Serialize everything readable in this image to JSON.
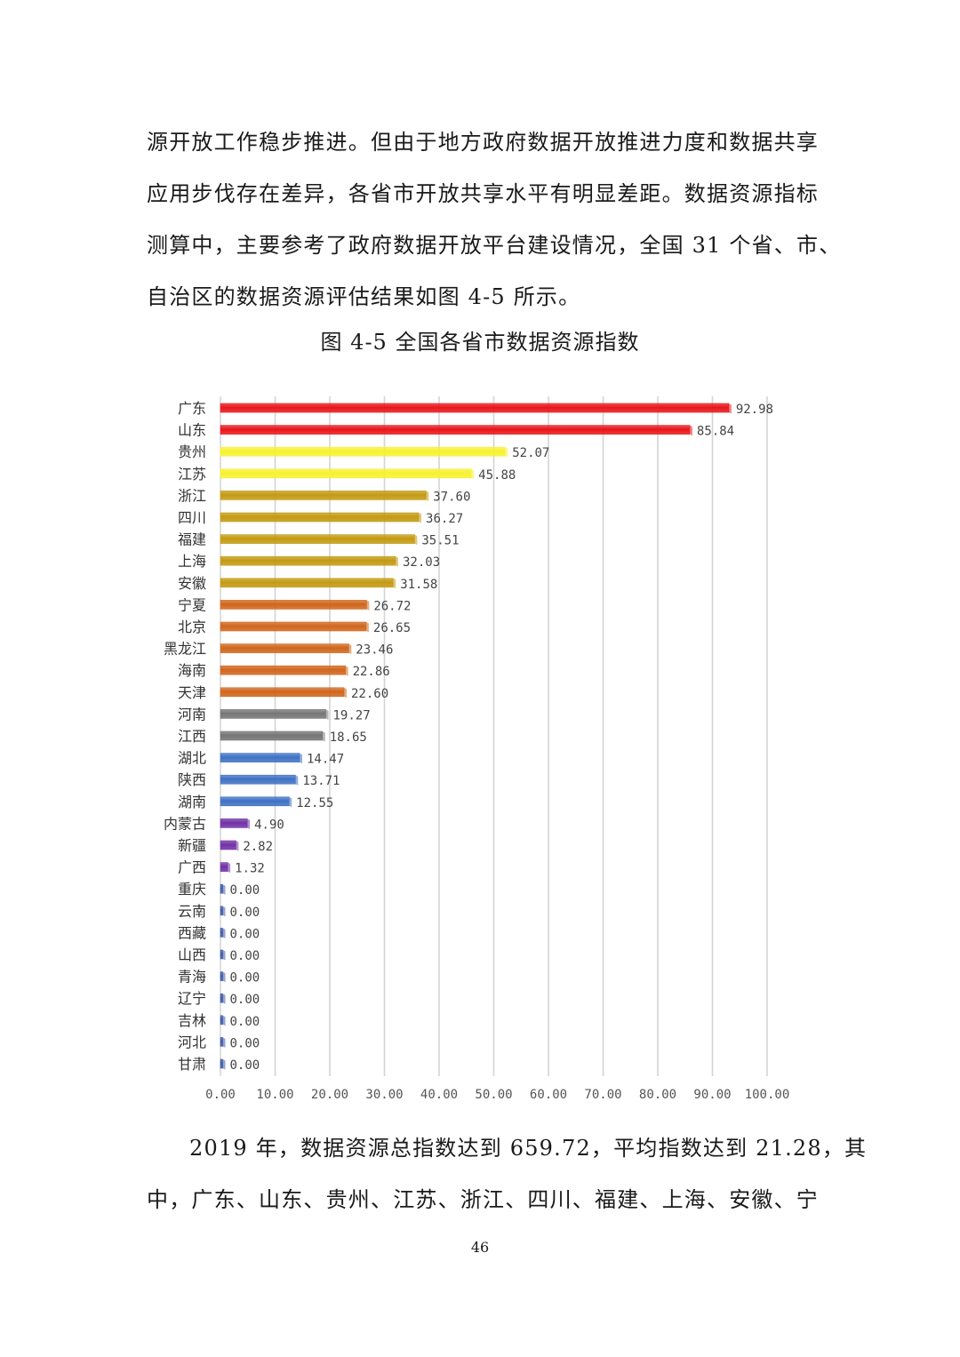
{
  "document": {
    "intro_lines": [
      "源开放工作稳步推进。但由于地方政府数据开放推进力度和数据共享",
      "应用步伐存在差异，各省市开放共享水平有明显差距。数据资源指标",
      "测算中，主要参考了政府数据开放平台建设情况，全国 31 个省、市、",
      "自治区的数据资源评估结果如图 4-5 所示。"
    ],
    "figure_caption": "图 4-5 全国各省市数据资源指数",
    "summary_lines": [
      "2019 年，数据资源总指数达到 659.72，平均指数达到 21.28，其",
      "中，广东、山东、贵州、江苏、浙江、四川、福建、上海、安徽、宁"
    ],
    "page_number": "46"
  },
  "chart_data": {
    "type": "bar",
    "orientation": "horizontal",
    "title": "",
    "xlabel": "",
    "ylabel": "",
    "xlim": [
      0,
      100
    ],
    "x_ticks": [
      "0.00",
      "10.00",
      "20.00",
      "30.00",
      "40.00",
      "50.00",
      "60.00",
      "70.00",
      "80.00",
      "90.00",
      "100.00"
    ],
    "grid": "vertical",
    "legend": "none",
    "categories": [
      "广东",
      "山东",
      "贵州",
      "江苏",
      "浙江",
      "四川",
      "福建",
      "上海",
      "安徽",
      "宁夏",
      "北京",
      "黑龙江",
      "海南",
      "天津",
      "河南",
      "江西",
      "湖北",
      "陕西",
      "湖南",
      "内蒙古",
      "新疆",
      "广西",
      "重庆",
      "云南",
      "西藏",
      "山西",
      "青海",
      "辽宁",
      "吉林",
      "河北",
      "甘肃"
    ],
    "values": [
      92.98,
      85.84,
      52.07,
      45.88,
      37.6,
      36.27,
      35.51,
      32.03,
      31.58,
      26.72,
      26.65,
      23.46,
      22.86,
      22.6,
      19.27,
      18.65,
      14.47,
      13.71,
      12.55,
      4.9,
      2.82,
      1.32,
      0.0,
      0.0,
      0.0,
      0.0,
      0.0,
      0.0,
      0.0,
      0.0,
      0.0
    ],
    "data_labels": [
      "92.98",
      "85.84",
      "52.07",
      "45.88",
      "37.60",
      "36.27",
      "35.51",
      "32.03",
      "31.58",
      "26.72",
      "26.65",
      "23.46",
      "22.86",
      "22.60",
      "19.27",
      "18.65",
      "14.47",
      "13.71",
      "12.55",
      "4.90",
      "2.82",
      "1.32",
      "0.00",
      "0.00",
      "0.00",
      "0.00",
      "0.00",
      "0.00",
      "0.00",
      "0.00",
      "0.00"
    ],
    "bar_colors": [
      "#e8161b",
      "#e8161b",
      "#f6f230",
      "#f6f230",
      "#c49a12",
      "#c49a12",
      "#c49a12",
      "#c49a12",
      "#c49a12",
      "#d0661c",
      "#d0661c",
      "#d0661c",
      "#d0661c",
      "#d0661c",
      "#757575",
      "#757575",
      "#3f71c4",
      "#3f71c4",
      "#3f71c4",
      "#7131a6",
      "#7131a6",
      "#7131a6",
      "#3f5aa8",
      "#3f5aa8",
      "#3f5aa8",
      "#3f5aa8",
      "#3f5aa8",
      "#3f5aa8",
      "#3f5aa8",
      "#3f5aa8",
      "#3f5aa8"
    ],
    "gridline_color": "#d4d4d4"
  }
}
